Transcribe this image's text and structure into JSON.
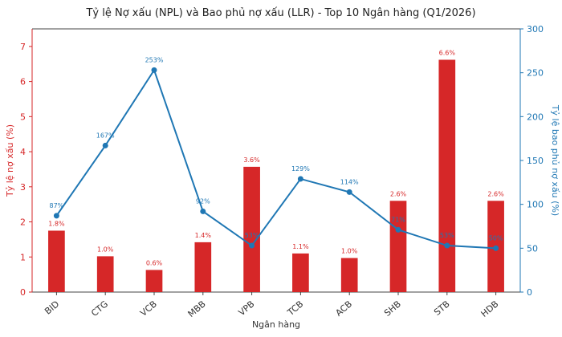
{
  "chart_data": {
    "type": "bar",
    "title": "Tỷ lệ Nợ xấu (NPL) và Bao phủ nợ xấu (LLR) - Top 10 Ngân hàng (Q1/2026)",
    "xlabel": "Ngân hàng",
    "ylabel": "Tỷ lệ nợ xấu (%)",
    "y2label": "Tỷ lệ bao phủ nợ xấu (%)",
    "categories": [
      "BID",
      "CTG",
      "VCB",
      "MBB",
      "VPB",
      "TCB",
      "ACB",
      "SHB",
      "STB",
      "HDB"
    ],
    "series": [
      {
        "type": "bar",
        "axis": "left",
        "color": "#d62728",
        "values": [
          1.75,
          1.02,
          0.63,
          1.42,
          3.57,
          1.1,
          0.97,
          2.6,
          6.62,
          2.6
        ],
        "labels": [
          "1.8%",
          "1.0%",
          "0.6%",
          "1.4%",
          "3.6%",
          "1.1%",
          "1.0%",
          "2.6%",
          "6.6%",
          "2.6%"
        ]
      },
      {
        "type": "line",
        "axis": "right",
        "color": "#1f77b4",
        "values": [
          87,
          167,
          253,
          92,
          53,
          129,
          114,
          71,
          53,
          50
        ],
        "labels": [
          "87%",
          "167%",
          "253%",
          "92%",
          "53%",
          "129%",
          "114%",
          "71%",
          "53%",
          "50%"
        ]
      }
    ],
    "ylim": [
      0,
      7.5
    ],
    "y2lim": [
      0,
      300
    ],
    "yticks": [
      "0",
      "1",
      "2",
      "3",
      "4",
      "5",
      "6",
      "7"
    ],
    "y2ticks": [
      "0",
      "50",
      "100",
      "150",
      "200",
      "250",
      "300"
    ],
    "grid": false,
    "left_axis_color": "#d62728",
    "right_axis_color": "#1f77b4"
  }
}
